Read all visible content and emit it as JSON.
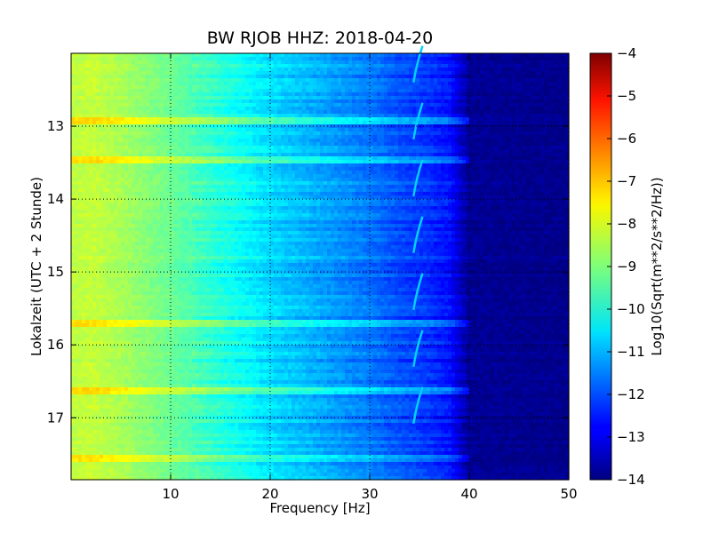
{
  "chart_data": {
    "type": "heatmap",
    "title": "BW RJOB HHZ: 2018-04-20",
    "xlabel": "Frequency [Hz]",
    "ylabel": "Lokalzeit (UTC + 2 Stunde)",
    "xlim": [
      0,
      50
    ],
    "ylim": [
      12.0,
      17.85
    ],
    "y_inverted": true,
    "x_ticks": [
      10,
      20,
      30,
      40,
      50
    ],
    "y_ticks": [
      13,
      14,
      15,
      16,
      17
    ],
    "grid": true,
    "colorscale": "jet",
    "colorbar": {
      "label": "Log10(Sqrt(m**2/s**2/Hz))",
      "range": [
        -14,
        -4
      ],
      "ticks": [
        -4,
        -5,
        -6,
        -7,
        -8,
        -9,
        -10,
        -11,
        -12,
        -13,
        -14
      ]
    },
    "spectrum_profile": {
      "frequency_hz": [
        0,
        2,
        5,
        10,
        15,
        20,
        25,
        30,
        33,
        36,
        38,
        40,
        50
      ],
      "log10_amplitude": [
        -8.4,
        -8.3,
        -8.6,
        -9.2,
        -9.9,
        -10.6,
        -11.1,
        -11.6,
        -12.0,
        -12.3,
        -12.6,
        -13.8,
        -13.9
      ]
    },
    "highlight_rows_hour": [
      12.93,
      13.48,
      15.72,
      16.63,
      17.55
    ],
    "resonance_track_hz": 34.7
  }
}
